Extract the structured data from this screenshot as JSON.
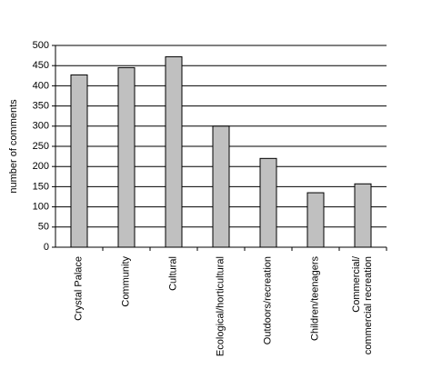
{
  "chart_data": {
    "type": "bar",
    "y_label": "number of comments",
    "categories": [
      "Crystal Palace",
      "Community",
      "Cultural",
      "Ecological/horticultural",
      "Outdoors/recreation",
      "Children/teenagers",
      "Commercial/\ncommercial recreation"
    ],
    "values": [
      427,
      445,
      472,
      300,
      220,
      135,
      157
    ],
    "color": "#c0c0c0",
    "ylim": [
      0,
      500
    ],
    "yticks": [
      0,
      50,
      100,
      150,
      200,
      250,
      300,
      350,
      400,
      450,
      500
    ],
    "grid": true
  }
}
